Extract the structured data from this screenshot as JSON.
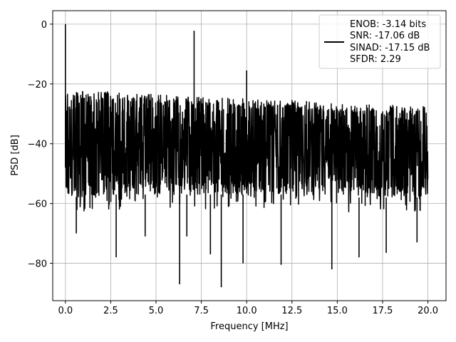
{
  "chart_data": {
    "type": "line",
    "xlabel": "Frequency [MHz]",
    "ylabel": "PSD [dB]",
    "xlim": [
      -0.7,
      21.0
    ],
    "ylim": [
      -92.5,
      4.5
    ],
    "xticks": [
      0.0,
      2.5,
      5.0,
      7.5,
      10.0,
      12.5,
      15.0,
      17.5,
      20.0
    ],
    "xtick_labels": [
      "0.0",
      "2.5",
      "5.0",
      "7.5",
      "10.0",
      "12.5",
      "15.0",
      "17.5",
      "20.0"
    ],
    "yticks": [
      0,
      -20,
      -40,
      -60,
      -80
    ],
    "ytick_labels": [
      "0",
      "−20",
      "−40",
      "−60",
      "−80"
    ],
    "grid": true,
    "legend": {
      "placement": "upper right",
      "entries": [
        "ENOB: -3.14 bits",
        "SNR: -17.06 dB",
        "SINAD: -17.15 dB",
        "SFDR: 2.29"
      ]
    },
    "series": [
      {
        "color": "#000000",
        "noise_band": {
          "x": [
            0.0,
            2.5,
            5.0,
            7.5,
            10.0,
            12.5,
            15.0,
            17.5,
            20.0
          ],
          "upper": [
            -22,
            -22.5,
            -23.5,
            -24.5,
            -25,
            -25.5,
            -26.5,
            -27,
            -27.5
          ],
          "lower": [
            -58,
            -57,
            -57,
            -57,
            -57,
            -57,
            -58,
            -58,
            -58
          ]
        },
        "peaks": [
          {
            "x": 0.0,
            "y": 0.0
          },
          {
            "x": 7.1,
            "y": -2.2
          },
          {
            "x": 10.0,
            "y": -15.5
          }
        ],
        "dips": [
          {
            "x": 0.6,
            "y": -70
          },
          {
            "x": 2.8,
            "y": -78
          },
          {
            "x": 4.4,
            "y": -71
          },
          {
            "x": 6.3,
            "y": -87
          },
          {
            "x": 6.7,
            "y": -71
          },
          {
            "x": 8.0,
            "y": -77
          },
          {
            "x": 8.6,
            "y": -88
          },
          {
            "x": 9.8,
            "y": -80
          },
          {
            "x": 11.9,
            "y": -80.5
          },
          {
            "x": 14.7,
            "y": -82
          },
          {
            "x": 16.2,
            "y": -78
          },
          {
            "x": 17.7,
            "y": -76.5
          },
          {
            "x": 19.4,
            "y": -73
          }
        ]
      }
    ]
  }
}
